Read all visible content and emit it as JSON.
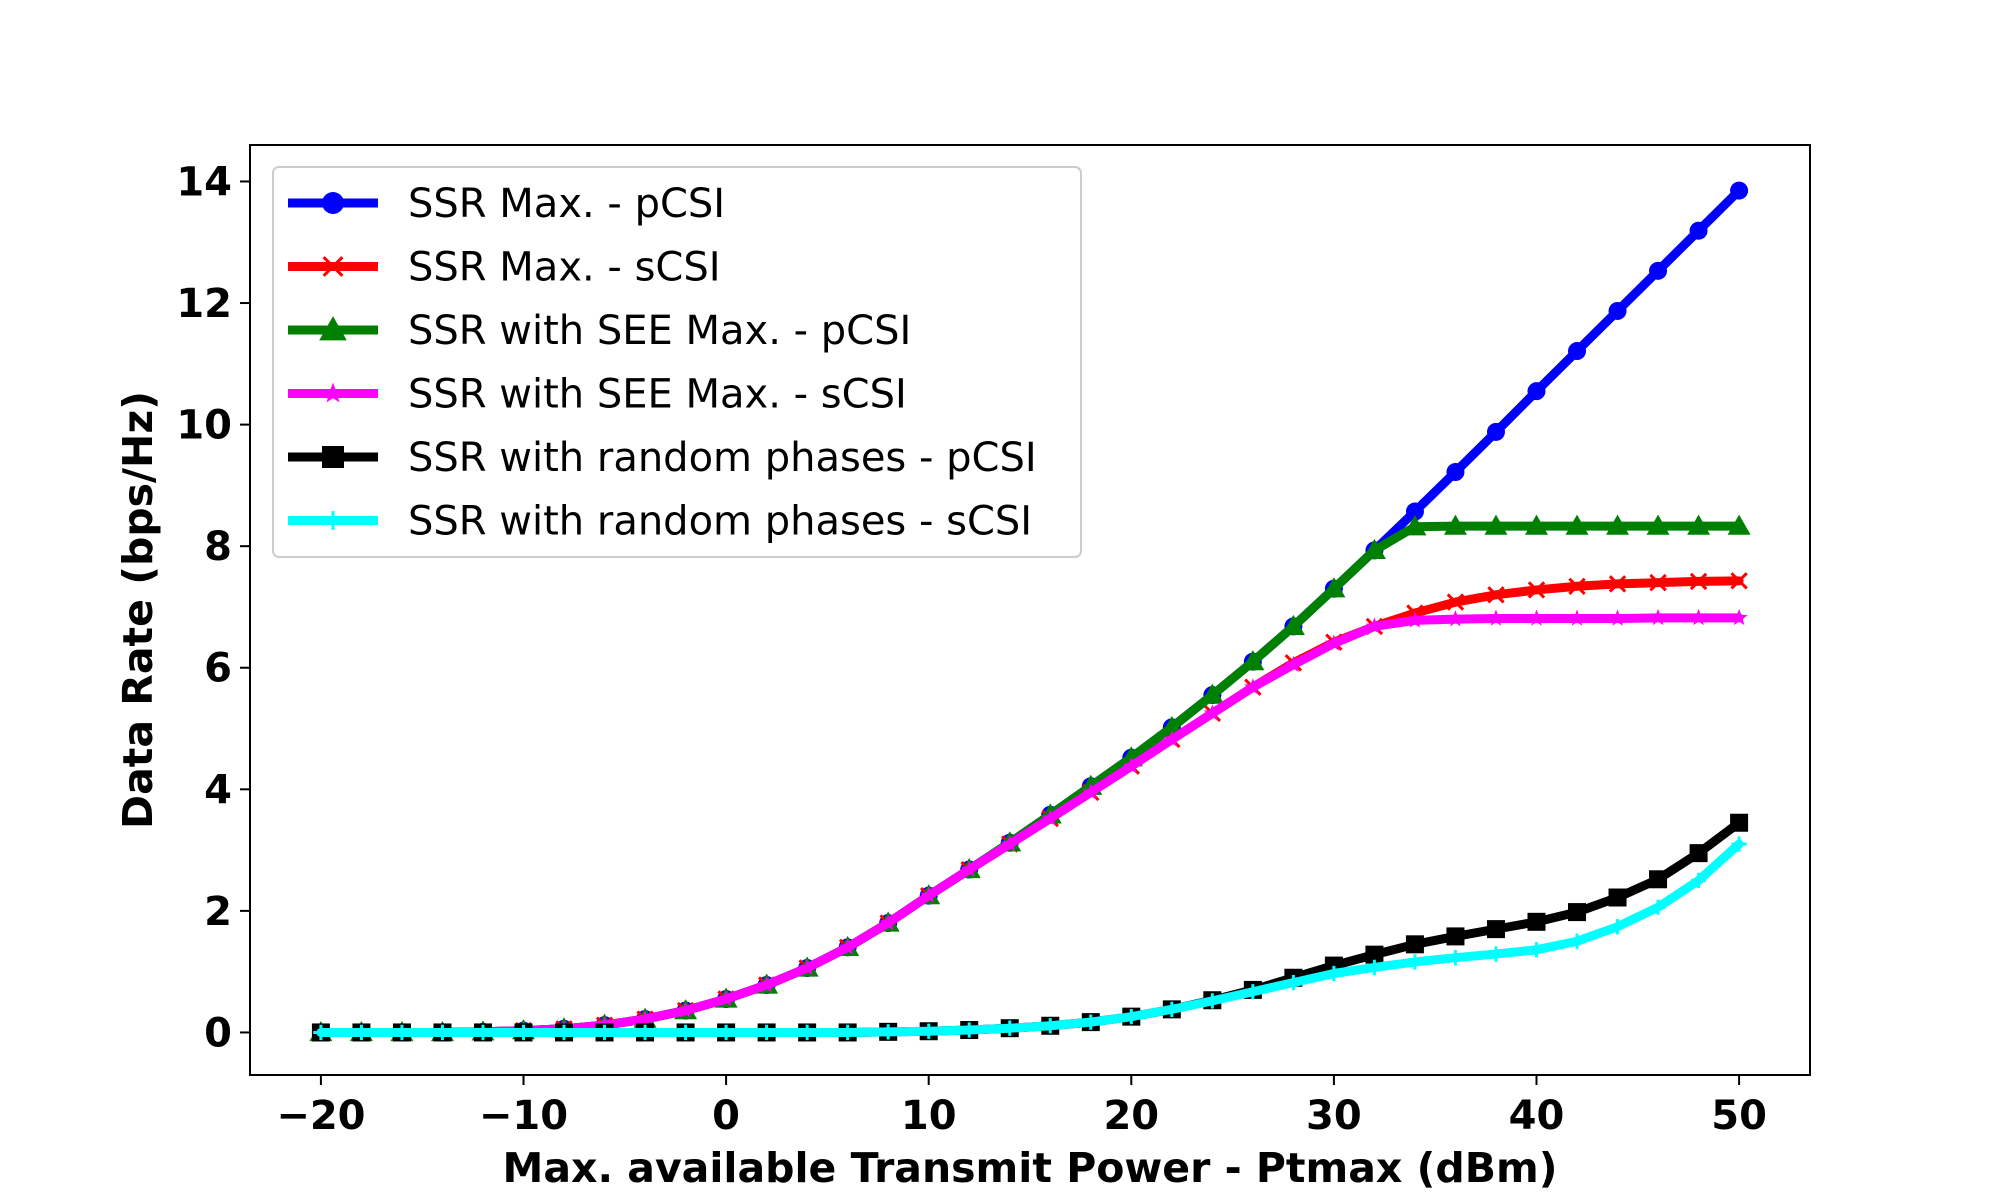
{
  "chart_data": {
    "type": "line",
    "title": "",
    "xlabel": "Max. available Transmit Power - Ptmax (dBm)",
    "ylabel": "Data Rate (bps/Hz)",
    "xlim": [
      -23.5,
      53.5
    ],
    "ylim": [
      -0.7,
      14.6
    ],
    "xticks": [
      -20,
      -10,
      0,
      10,
      20,
      30,
      40,
      50
    ],
    "yticks": [
      0,
      2,
      4,
      6,
      8,
      10,
      12,
      14
    ],
    "xtick_labels": [
      "−20",
      "−10",
      "0",
      "10",
      "20",
      "30",
      "40",
      "50"
    ],
    "ytick_labels": [
      "0",
      "2",
      "4",
      "6",
      "8",
      "10",
      "12",
      "14"
    ],
    "grid": false,
    "legend_position": "top-left",
    "x": [
      -20,
      -18,
      -16,
      -14,
      -12,
      -10,
      -8,
      -6,
      -4,
      -2,
      0,
      2,
      4,
      6,
      8,
      10,
      12,
      14,
      16,
      18,
      20,
      22,
      24,
      26,
      28,
      30,
      32,
      34,
      36,
      38,
      40,
      42,
      44,
      46,
      48,
      50
    ],
    "series": [
      {
        "name": "SSR Max. - pCSI",
        "color": "#0000ff",
        "marker": "circle",
        "values": [
          0,
          0,
          0,
          0,
          0.01,
          0.03,
          0.06,
          0.12,
          0.22,
          0.36,
          0.55,
          0.78,
          1.06,
          1.4,
          1.8,
          2.25,
          2.68,
          3.12,
          3.58,
          4.05,
          4.52,
          5.02,
          5.55,
          6.1,
          6.68,
          7.3,
          7.93,
          8.57,
          9.22,
          9.88,
          10.55,
          11.21,
          11.87,
          12.53,
          13.19,
          13.85
        ]
      },
      {
        "name": "SSR Max. - sCSI",
        "color": "#ff0000",
        "marker": "x",
        "values": [
          0,
          0,
          0,
          0,
          0.01,
          0.03,
          0.06,
          0.12,
          0.22,
          0.36,
          0.55,
          0.78,
          1.06,
          1.4,
          1.8,
          2.25,
          2.68,
          3.1,
          3.52,
          3.95,
          4.38,
          4.82,
          5.25,
          5.68,
          6.08,
          6.42,
          6.68,
          6.9,
          7.08,
          7.2,
          7.28,
          7.34,
          7.38,
          7.4,
          7.42,
          7.43
        ]
      },
      {
        "name": "SSR with SEE Max. - pCSI",
        "color": "#008000",
        "marker": "triangle",
        "values": [
          0,
          0,
          0,
          0,
          0.01,
          0.03,
          0.06,
          0.12,
          0.22,
          0.36,
          0.55,
          0.78,
          1.06,
          1.4,
          1.8,
          2.25,
          2.68,
          3.12,
          3.58,
          4.05,
          4.52,
          5.02,
          5.55,
          6.1,
          6.68,
          7.3,
          7.93,
          8.32,
          8.33,
          8.33,
          8.33,
          8.33,
          8.33,
          8.33,
          8.33,
          8.33
        ]
      },
      {
        "name": "SSR with SEE Max. - sCSI",
        "color": "#ff00ff",
        "marker": "star",
        "values": [
          0,
          0,
          0,
          0,
          0.01,
          0.03,
          0.06,
          0.12,
          0.22,
          0.36,
          0.55,
          0.78,
          1.06,
          1.4,
          1.8,
          2.25,
          2.68,
          3.1,
          3.52,
          3.95,
          4.38,
          4.82,
          5.25,
          5.68,
          6.05,
          6.4,
          6.68,
          6.78,
          6.8,
          6.81,
          6.81,
          6.81,
          6.81,
          6.82,
          6.82,
          6.82
        ]
      },
      {
        "name": "SSR with random phases - pCSI",
        "color": "#000000",
        "marker": "square",
        "values": [
          0,
          0,
          0,
          0,
          0,
          0,
          0,
          0,
          0,
          0,
          0,
          0,
          0,
          0,
          0.01,
          0.02,
          0.04,
          0.07,
          0.11,
          0.17,
          0.26,
          0.38,
          0.53,
          0.7,
          0.9,
          1.1,
          1.28,
          1.45,
          1.58,
          1.7,
          1.82,
          1.98,
          2.22,
          2.52,
          2.95,
          3.45
        ]
      },
      {
        "name": "SSR with random phases - sCSI",
        "color": "#00ffff",
        "marker": "plus",
        "values": [
          0,
          0,
          0,
          0,
          0,
          0,
          0,
          0,
          0,
          0,
          0,
          0,
          0,
          0,
          0.01,
          0.02,
          0.04,
          0.07,
          0.11,
          0.17,
          0.26,
          0.38,
          0.52,
          0.67,
          0.82,
          0.97,
          1.07,
          1.16,
          1.23,
          1.29,
          1.36,
          1.5,
          1.74,
          2.06,
          2.5,
          3.1
        ]
      }
    ]
  }
}
